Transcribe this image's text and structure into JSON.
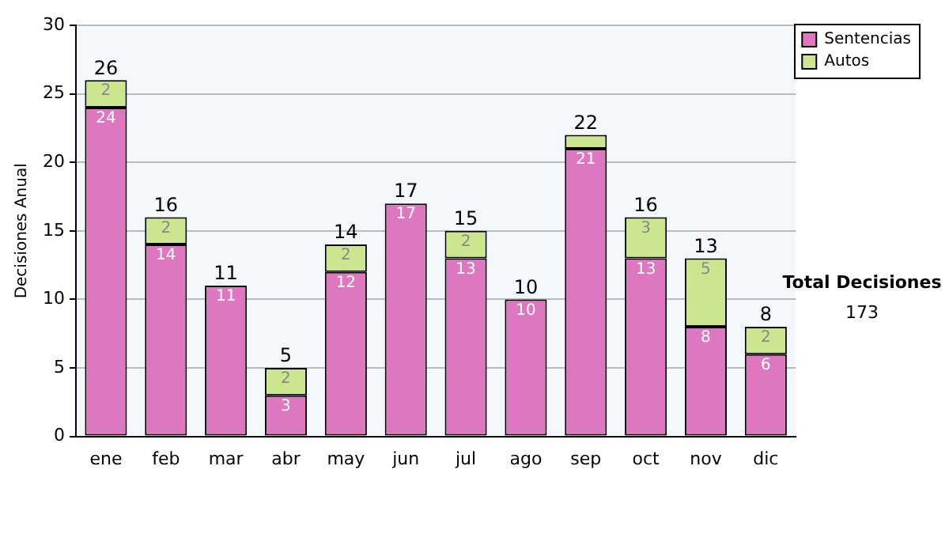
{
  "chart_data": {
    "type": "bar",
    "stacked": true,
    "ylabel": "Decisiones Anual",
    "categories": [
      "ene",
      "feb",
      "mar",
      "abr",
      "may",
      "jun",
      "jul",
      "ago",
      "sep",
      "oct",
      "nov",
      "dic"
    ],
    "series": [
      {
        "name": "Sentencias",
        "color": "#dd77c0",
        "values": [
          24,
          14,
          11,
          3,
          12,
          17,
          13,
          10,
          21,
          13,
          8,
          6
        ],
        "value_labels": [
          "24",
          "14",
          "11",
          "3",
          "12",
          "17",
          "13",
          "10",
          "21",
          "13",
          "8",
          "6"
        ]
      },
      {
        "name": "Autos",
        "color": "#cce68f",
        "values": [
          2,
          2,
          0,
          2,
          2,
          0,
          2,
          0,
          1,
          3,
          5,
          2
        ],
        "value_labels": [
          "2",
          "2",
          null,
          "2",
          "2",
          null,
          "2",
          null,
          null,
          "3",
          "5",
          "2"
        ]
      }
    ],
    "totals": [
      "26",
      "16",
      "11",
      "5",
      "14",
      "17",
      "15",
      "10",
      "22",
      "16",
      "13",
      "8"
    ],
    "ylim": [
      0,
      30
    ],
    "yticks": [
      0,
      5,
      10,
      15,
      20,
      25,
      30
    ],
    "grid": "y",
    "legend": "right",
    "annotations": [
      "Total Decisiones",
      "173"
    ]
  }
}
